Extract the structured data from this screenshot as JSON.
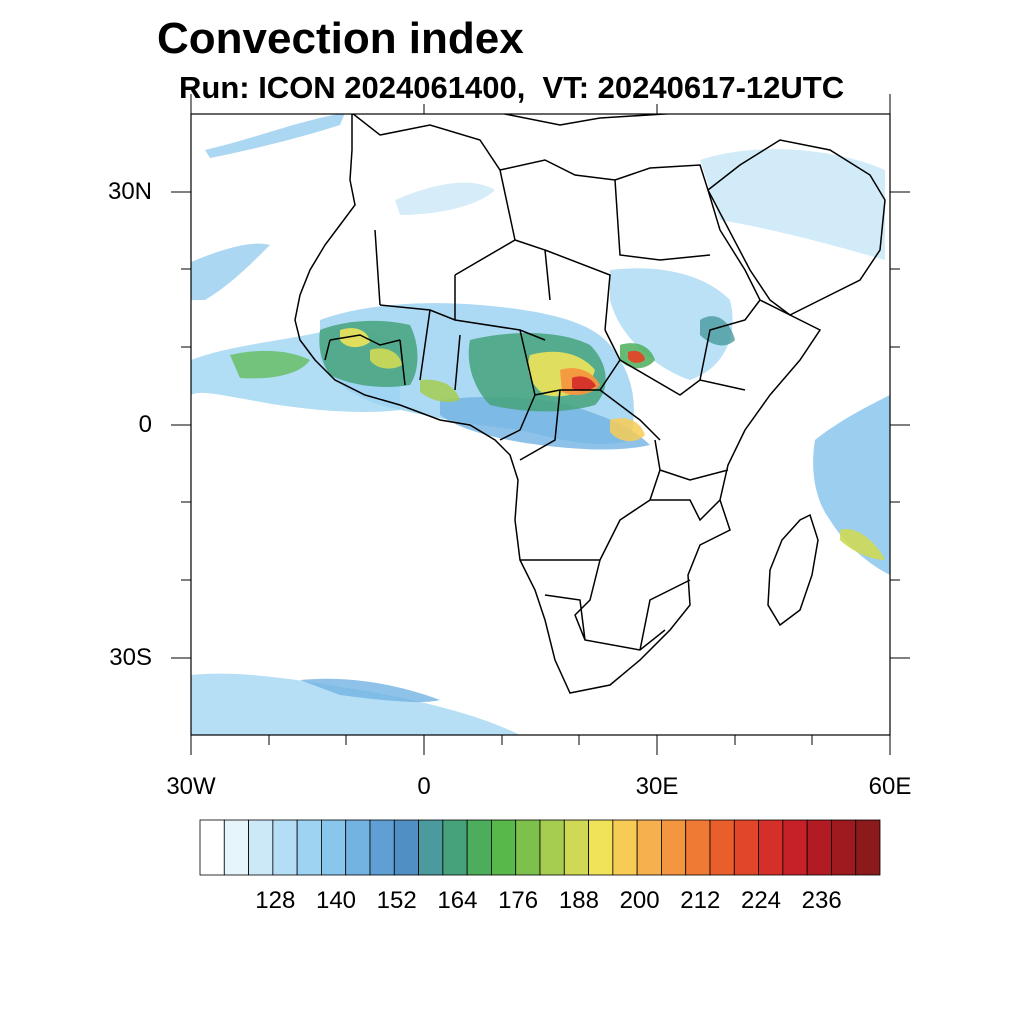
{
  "header": {
    "title": "Convection index",
    "subtitle": "Run: ICON 2024061400,  VT: 20240617-12UTC"
  },
  "map": {
    "region": "Africa",
    "lon_range": [
      -30,
      60
    ],
    "lat_range": [
      -40,
      40
    ],
    "lon_labels": [
      "30W",
      "0",
      "30E",
      "60E"
    ],
    "lat_labels": [
      "30N",
      "0",
      "30S"
    ]
  },
  "colorbar": {
    "labels": [
      "128",
      "140",
      "152",
      "164",
      "176",
      "188",
      "200",
      "212",
      "224",
      "236"
    ],
    "colors": [
      "#ffffff",
      "#e6f4fc",
      "#cce9f8",
      "#b4def6",
      "#9ed4f2",
      "#89c6ec",
      "#72b3e2",
      "#5f9fd4",
      "#4f8fc4",
      "#4a9a9e",
      "#45a27a",
      "#4cae5c",
      "#58b84a",
      "#7dc14c",
      "#a6cc50",
      "#cfd955",
      "#f0e35a",
      "#f7cb55",
      "#f6b04d",
      "#f4963f",
      "#ef7a33",
      "#e95f2c",
      "#e14629",
      "#d52f2a",
      "#c62129",
      "#b21a24",
      "#9e1a1f",
      "#8b1a1a"
    ]
  }
}
